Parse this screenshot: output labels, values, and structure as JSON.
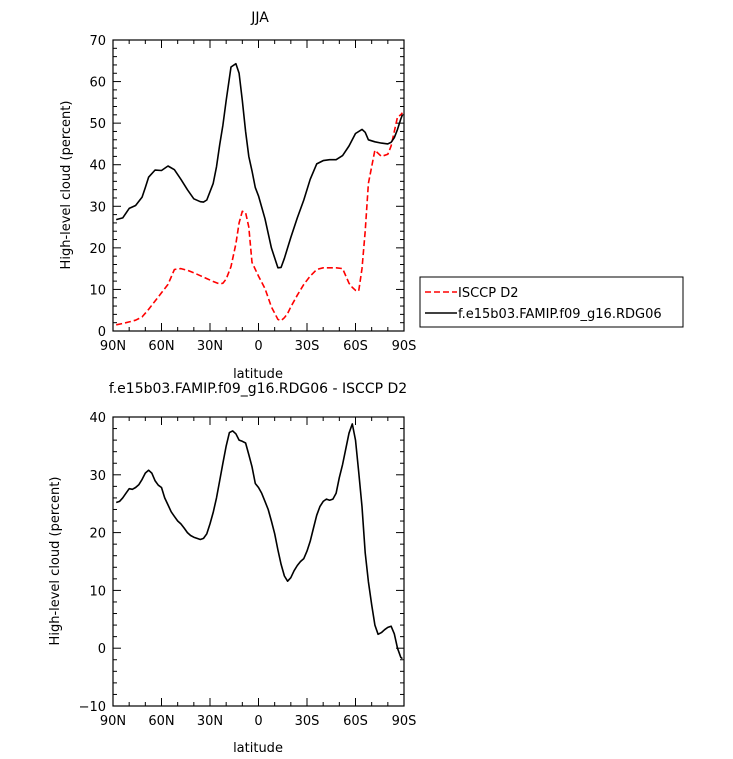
{
  "chart_data": [
    {
      "type": "line",
      "title": "JJA",
      "xlabel": "latitude",
      "ylabel": "High-level cloud (percent)",
      "xlim": [
        90,
        -90
      ],
      "ylim": [
        0,
        70
      ],
      "x_ticks": [
        90,
        60,
        30,
        0,
        -30,
        -60,
        -90
      ],
      "x_tick_labels": [
        "90N",
        "60N",
        "30N",
        "0",
        "30S",
        "60S",
        "90S"
      ],
      "y_ticks": [
        0,
        10,
        20,
        30,
        40,
        50,
        60,
        70
      ],
      "y_tick_labels": [
        "0",
        "10",
        "20",
        "30",
        "40",
        "50",
        "60",
        "70"
      ],
      "legend_placement": "right",
      "series": [
        {
          "name": "ISCCP D2",
          "color": "#ff0000",
          "dash": "dashed",
          "x": [
            88,
            84,
            80,
            76,
            72,
            68,
            64,
            60,
            56,
            54,
            52,
            48,
            44,
            40,
            36,
            32,
            28,
            24,
            22,
            20,
            17,
            14,
            12,
            10,
            8,
            6,
            4,
            0,
            -4,
            -8,
            -12,
            -14,
            -16,
            -18,
            -20,
            -24,
            -28,
            -32,
            -36,
            -40,
            -44,
            -48,
            -52,
            -56,
            -58,
            -60,
            -62,
            -64,
            -66,
            -68,
            -72,
            -76,
            -80,
            -82,
            -84,
            -86,
            -88,
            -89
          ],
          "y": [
            1.5,
            1.8,
            2.2,
            2.6,
            3.4,
            5.2,
            7.2,
            9.2,
            11.2,
            13,
            14.8,
            15,
            14.6,
            14,
            13.3,
            12.6,
            11.9,
            11.3,
            11.5,
            12.5,
            15.5,
            21,
            26,
            28.8,
            28.5,
            25,
            16.5,
            13.2,
            10.2,
            5.8,
            2.8,
            2.5,
            3.2,
            4.2,
            5.8,
            8.6,
            11.2,
            13.2,
            14.8,
            15.2,
            15.2,
            15.2,
            15,
            11.5,
            10.5,
            9.8,
            9.6,
            15,
            24,
            35.5,
            43.5,
            42,
            42.5,
            44.5,
            48,
            51.5,
            52,
            52.5
          ]
        },
        {
          "name": "f.e15b03.FAMIP.f09_g16.RDG06",
          "color": "#000000",
          "dash": "solid",
          "x": [
            88,
            84,
            80,
            76,
            72,
            70,
            68,
            64,
            60,
            56,
            52,
            48,
            44,
            40,
            36,
            34,
            32,
            28,
            26,
            24,
            22,
            20,
            17,
            14,
            12,
            10,
            8,
            6,
            4,
            2,
            0,
            -4,
            -8,
            -12,
            -14,
            -16,
            -18,
            -20,
            -24,
            -28,
            -32,
            -36,
            -40,
            -44,
            -48,
            -52,
            -56,
            -60,
            -64,
            -66,
            -68,
            -72,
            -76,
            -80,
            -82,
            -84,
            -86,
            -88,
            -89
          ],
          "y": [
            26.8,
            27.2,
            29.5,
            30.2,
            32.2,
            34.5,
            37,
            38.7,
            38.6,
            39.7,
            38.8,
            36.5,
            34,
            31.8,
            31.1,
            31,
            31.5,
            35.5,
            39.5,
            44.8,
            49.5,
            55.5,
            63.5,
            64.3,
            62,
            55.5,
            48,
            42,
            38.5,
            34.5,
            32.5,
            27,
            20,
            15.2,
            15.3,
            17.5,
            20,
            22.5,
            27.2,
            31.5,
            36.5,
            40.2,
            41,
            41.2,
            41.2,
            42.2,
            44.5,
            47.5,
            48.5,
            47.8,
            46,
            45.5,
            45.2,
            45,
            45.4,
            46.5,
            48.5,
            51,
            52
          ]
        }
      ]
    },
    {
      "type": "line",
      "title": "f.e15b03.FAMIP.f09_g16.RDG06 - ISCCP D2",
      "xlabel": "latitude",
      "ylabel": "High-level cloud (percent)",
      "xlim": [
        90,
        -90
      ],
      "ylim": [
        -10,
        40
      ],
      "x_ticks": [
        90,
        60,
        30,
        0,
        -30,
        -60,
        -90
      ],
      "x_tick_labels": [
        "90N",
        "60N",
        "30N",
        "0",
        "30S",
        "60S",
        "90S"
      ],
      "y_ticks": [
        -10,
        0,
        10,
        20,
        30,
        40
      ],
      "y_tick_labels": [
        "−10",
        "0",
        "10",
        "20",
        "30",
        "40"
      ],
      "series": [
        {
          "color": "#000000",
          "dash": "solid",
          "x": [
            88,
            86,
            84,
            82,
            80,
            78,
            76,
            74,
            72,
            70,
            68,
            66,
            64,
            62,
            60,
            58,
            56,
            54,
            52,
            50,
            48,
            46,
            44,
            42,
            40,
            38,
            36,
            34,
            32,
            30,
            28,
            26,
            24,
            22,
            20,
            18,
            16,
            14,
            12,
            10,
            8,
            6,
            4,
            2,
            0,
            -2,
            -4,
            -6,
            -8,
            -10,
            -12,
            -14,
            -16,
            -18,
            -20,
            -22,
            -24,
            -26,
            -28,
            -30,
            -32,
            -34,
            -36,
            -38,
            -40,
            -42,
            -44,
            -46,
            -48,
            -50,
            -52,
            -54,
            -56,
            -58,
            -60,
            -62,
            -64,
            -66,
            -68,
            -70,
            -72,
            -74,
            -76,
            -78,
            -80,
            -82,
            -84,
            -86,
            -88,
            -89
          ],
          "y": [
            25.2,
            25.4,
            26,
            26.8,
            27.6,
            27.5,
            27.8,
            28.3,
            29.2,
            30.3,
            30.8,
            30.3,
            29,
            28.2,
            27.8,
            26,
            24.8,
            23.6,
            22.8,
            22,
            21.5,
            20.8,
            20,
            19.5,
            19.2,
            19,
            18.8,
            19,
            19.8,
            21.5,
            23.5,
            26,
            29,
            32,
            35,
            37.3,
            37.6,
            37.1,
            36,
            35.8,
            35.5,
            33.5,
            31.4,
            28.5,
            27.8,
            26.8,
            25.4,
            24,
            22,
            19.8,
            17,
            14.5,
            12.5,
            11.6,
            12.2,
            13.4,
            14.3,
            15,
            15.5,
            16.8,
            18.5,
            20.8,
            23,
            24.5,
            25.4,
            25.8,
            25.6,
            25.8,
            26.8,
            29.5,
            31.8,
            34.5,
            37.2,
            38.8,
            36,
            30.5,
            24.5,
            16.5,
            11.5,
            7.5,
            4,
            2.4,
            2.7,
            3.2,
            3.6,
            3.8,
            2.5,
            0,
            -1.6,
            -1.8
          ]
        }
      ]
    }
  ]
}
